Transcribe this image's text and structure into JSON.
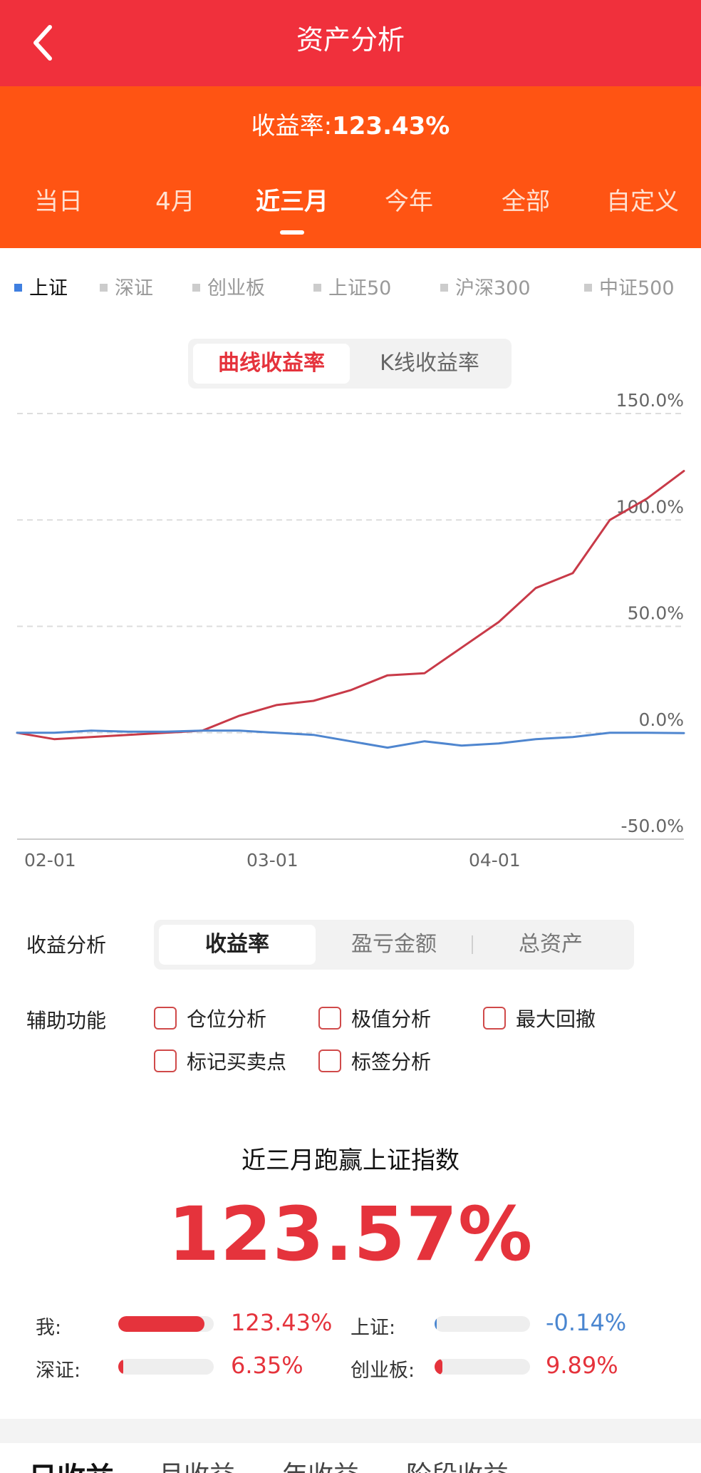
{
  "header": {
    "title": "资产分析"
  },
  "summary": {
    "label": "收益率:",
    "value": "123.43%"
  },
  "periods": [
    "当日",
    "4月",
    "近三月",
    "今年",
    "全部",
    "自定义"
  ],
  "period_active": 2,
  "indices": [
    "上证",
    "深证",
    "创业板",
    "上证50",
    "沪深300",
    "中证500"
  ],
  "index_active": 0,
  "chart_modes": [
    "曲线收益率",
    "K线收益率"
  ],
  "chart_mode_active": 0,
  "colors": {
    "header": "#f0303c",
    "accent": "#ff5413",
    "mine": "#c83a48",
    "index": "#4f86cf",
    "negative": "#4a86d0"
  },
  "chart_data": {
    "type": "line",
    "x": [
      "02-01",
      "02-05",
      "02-10",
      "02-15",
      "02-20",
      "02-25",
      "03-01",
      "03-05",
      "03-10",
      "03-15",
      "03-20",
      "03-25",
      "04-01",
      "04-05",
      "04-10",
      "04-15",
      "04-20",
      "04-25",
      "04-28"
    ],
    "xticks": [
      "02-01",
      "03-01",
      "04-01"
    ],
    "yticks": [
      "150.0%",
      "100.0%",
      "50.0%",
      "0.0%",
      "-50.0%"
    ],
    "ylim": [
      -50,
      150
    ],
    "series": [
      {
        "values": [
          0,
          -3,
          -2,
          -1,
          0,
          1,
          8,
          13,
          15,
          20,
          27,
          28,
          40,
          52,
          68,
          75,
          100,
          110,
          123
        ]
      },
      {
        "values": [
          0,
          0,
          1,
          0.5,
          0.5,
          1,
          1,
          0,
          -1,
          -4,
          -7,
          -4,
          -6,
          -5,
          -3,
          -2,
          0,
          0,
          -0.14
        ]
      }
    ]
  },
  "analysis": {
    "label": "收益分析",
    "tabs": [
      "收益率",
      "盈亏金额",
      "总资产"
    ],
    "active": 0
  },
  "aux": {
    "label": "辅助功能",
    "options": [
      "仓位分析",
      "极值分析",
      "最大回撤",
      "标记买卖点",
      "标签分析"
    ]
  },
  "beat": {
    "title": "近三月跑赢上证指数",
    "value": "123.57%"
  },
  "comparisons": [
    {
      "label": "我:",
      "value": "123.43%",
      "level": 0.9,
      "color": "#e5333c"
    },
    {
      "label": "上证:",
      "value": "-0.14%",
      "level": 0.01,
      "color": "#4a86d0"
    },
    {
      "label": "深证:",
      "value": "6.35%",
      "level": 0.05,
      "color": "#e5333c"
    },
    {
      "label": "创业板:",
      "value": "9.89%",
      "level": 0.08,
      "color": "#e5333c"
    }
  ],
  "bottom_tabs": [
    "日收益",
    "月收益",
    "年收益",
    "阶段收益"
  ]
}
